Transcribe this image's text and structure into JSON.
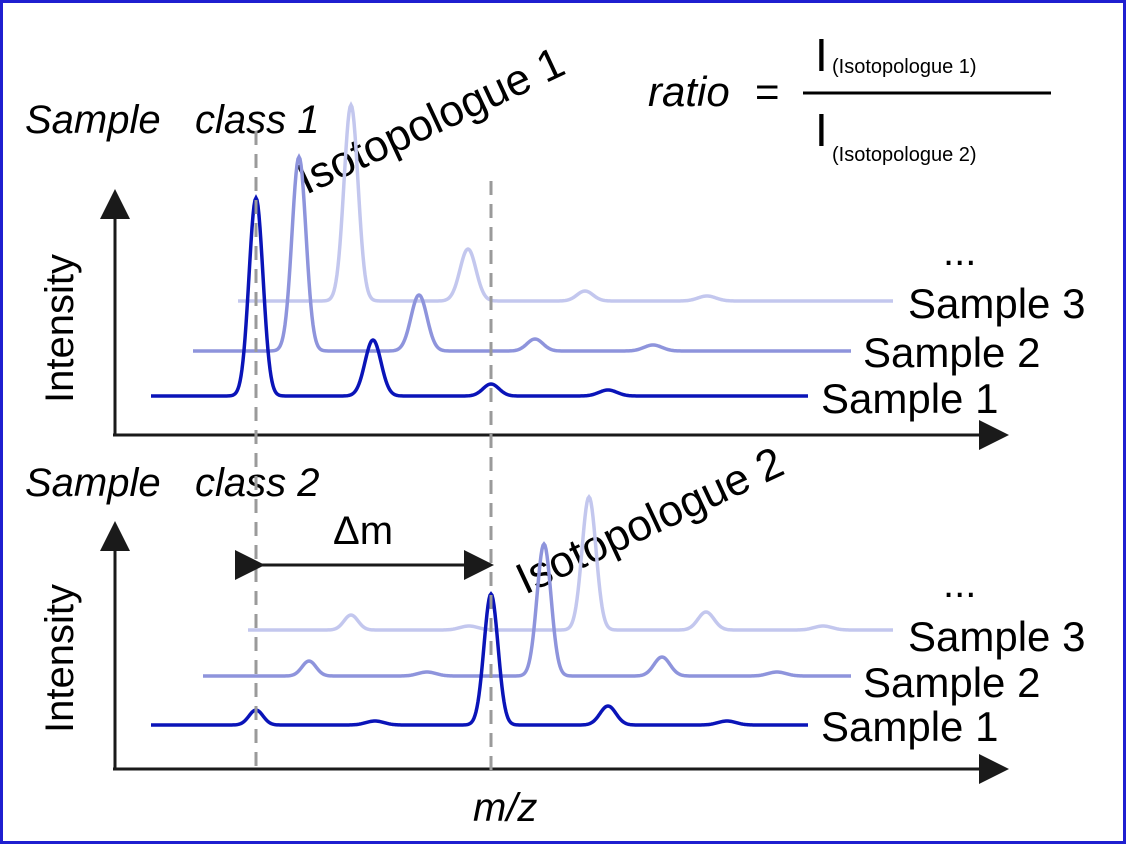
{
  "formula": {
    "lhs": "ratio",
    "eq": "=",
    "numerator": "I",
    "numerator_sub": "(Isotopologue 1)",
    "denominator": "I",
    "denominator_sub": "(Isotopologue 2)"
  },
  "panels": [
    {
      "class_label": "Sample class 1",
      "class_label_parts": [
        "Sample",
        "class 1"
      ],
      "y_axis_label": "Intensity",
      "isotopologue_label": "Isotopologue 1",
      "ellipsis": "...",
      "sample_labels": [
        "Sample 3",
        "Sample 2",
        "Sample 1"
      ]
    },
    {
      "class_label": "Sample class 2",
      "class_label_parts": [
        "Sample",
        "class 2"
      ],
      "y_axis_label": "Intensity",
      "isotopologue_label": "Isotopologue 2",
      "ellipsis": "...",
      "sample_labels": [
        "Sample 3",
        "Sample 2",
        "Sample 1"
      ]
    }
  ],
  "delta_label": "Δm",
  "x_axis_label": "m/z",
  "colors": {
    "border": "#1f1fd0",
    "sample1": "#0a14b8",
    "sample2": "#8e94dc",
    "sample3": "#c3c7ee",
    "guide": "#9a9a9a",
    "axis": "#1a1a1a"
  }
}
